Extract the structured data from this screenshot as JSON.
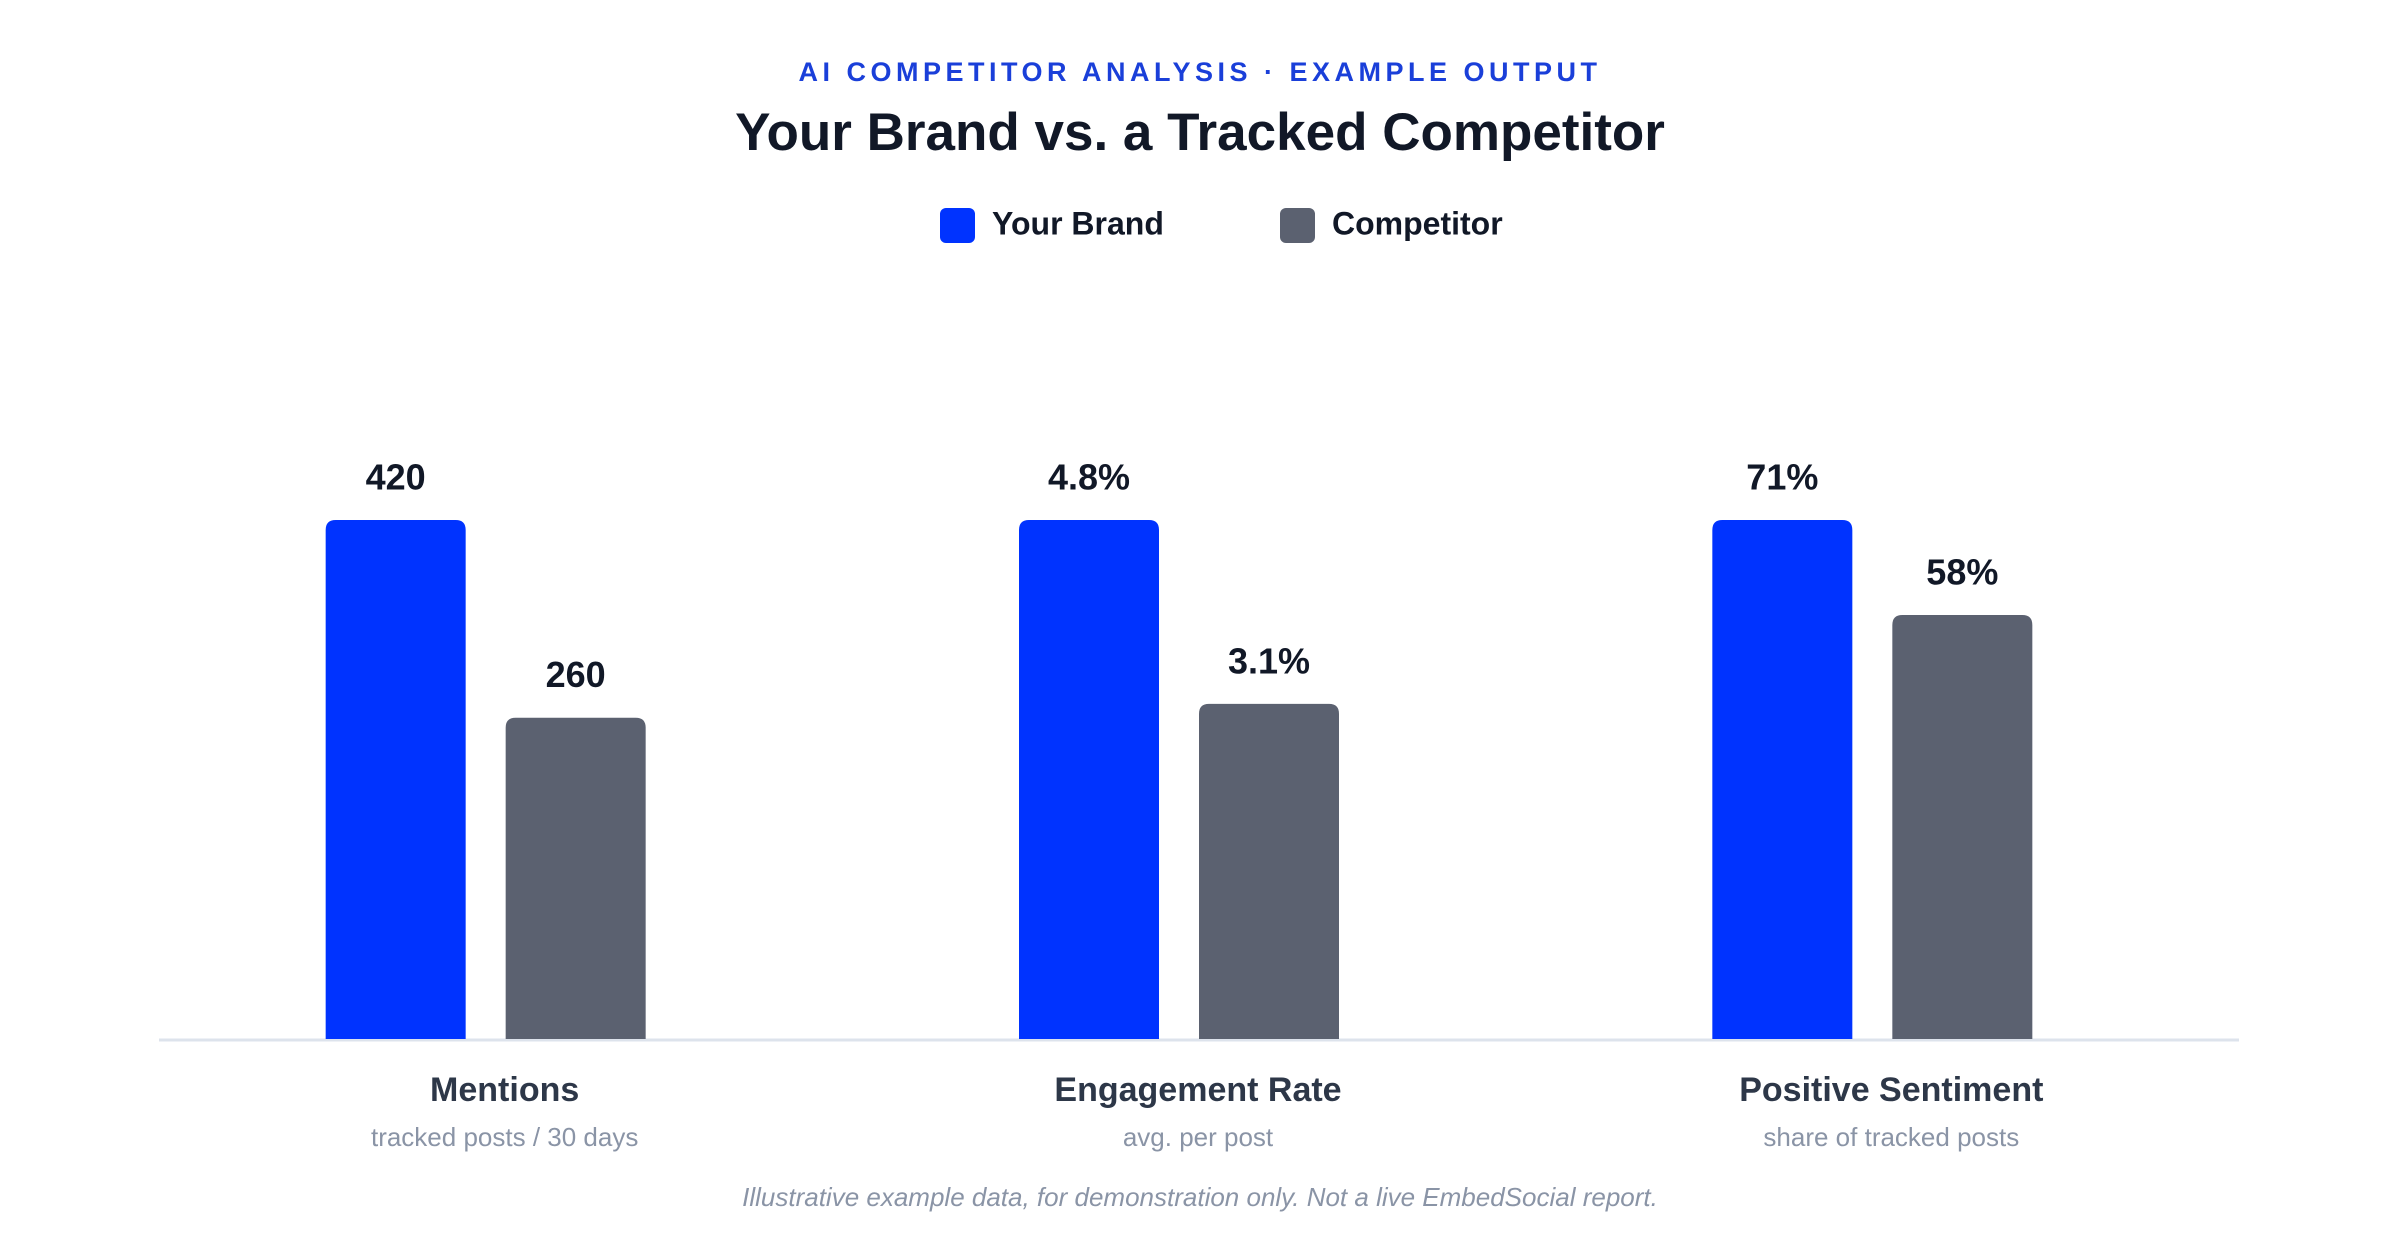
{
  "chart_data": {
    "type": "bar",
    "supertitle": "AI COMPETITOR ANALYSIS · EXAMPLE OUTPUT",
    "title": "Your Brand vs. a Tracked Competitor",
    "categories": [
      "Mentions",
      "Engagement Rate",
      "Positive Sentiment"
    ],
    "category_notes": [
      "tracked posts / 30 days",
      "avg. per post",
      "share of tracked posts"
    ],
    "series": [
      {
        "name": "Your Brand",
        "color": "#0033ff",
        "values": [
          420,
          4.8,
          71
        ],
        "value_labels": [
          "420",
          "4.8%",
          "71%"
        ]
      },
      {
        "name": "Competitor",
        "color": "#5b6170",
        "values": [
          260,
          3.1,
          58
        ],
        "value_labels": [
          "260",
          "3.1%",
          "58%"
        ]
      }
    ],
    "footnote": "Illustrative example data, for demonstration only. Not a live EmbedSocial report."
  }
}
